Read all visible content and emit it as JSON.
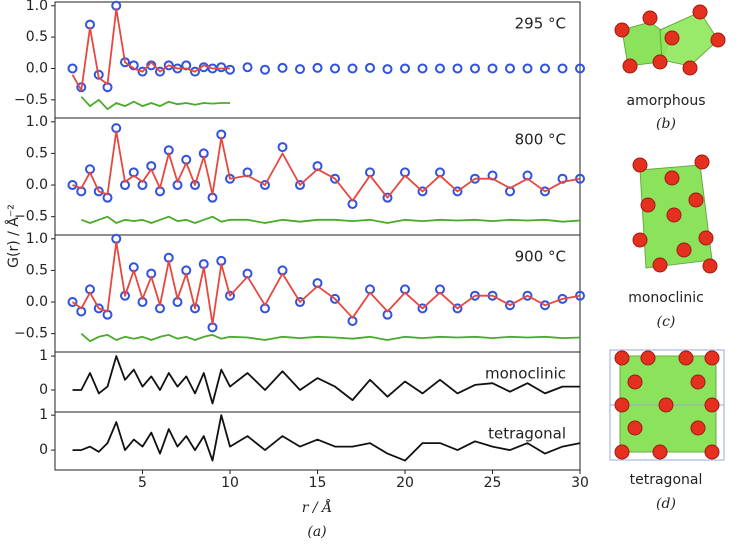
{
  "figure": {
    "ylabel": "G(r) / Å⁻²",
    "xlabel": "r / Å",
    "caption": "(a)"
  },
  "structures": [
    {
      "label": "amorphous",
      "caption": "(b)"
    },
    {
      "label": "monoclinic",
      "caption": "(c)"
    },
    {
      "label": "tetragonal",
      "caption": "(d)"
    }
  ],
  "chart_data": [
    {
      "type": "line",
      "annotation": "295 °C",
      "xlim": [
        0,
        30
      ],
      "ylim": [
        -0.79,
        1.06
      ],
      "yticks": [
        {
          "value": 1,
          "label": "1.0"
        },
        {
          "value": 0.5,
          "label": "0.5"
        },
        {
          "value": 0,
          "label": "0.0"
        },
        {
          "value": -0.5,
          "label": "−0.5"
        }
      ],
      "x": [
        1,
        1.5,
        2,
        2.5,
        3,
        3.5,
        4,
        4.5,
        5,
        5.5,
        6,
        6.5,
        7,
        7.5,
        8,
        8.5,
        9,
        9.5,
        10,
        11,
        12,
        13,
        14,
        15,
        16,
        17,
        18,
        19,
        20,
        21,
        22,
        23,
        24,
        25,
        26,
        27,
        28,
        29,
        30
      ],
      "series": [
        {
          "mode": "markers",
          "color": "#2f52e0",
          "values": [
            0.0,
            -0.3,
            0.7,
            -0.1,
            -0.3,
            1.0,
            0.1,
            0.05,
            -0.05,
            0.05,
            -0.05,
            0.05,
            0.0,
            0.05,
            -0.05,
            0.02,
            0.0,
            0.02,
            -0.02,
            0.02,
            -0.02,
            0.01,
            -0.01,
            0.01,
            0.0,
            0.0,
            0.01,
            -0.01,
            0.0,
            0.0,
            0.0,
            0.0,
            0.0,
            0.0,
            0.0,
            0.0,
            0.0,
            0.0,
            0.0
          ]
        },
        {
          "mode": "line",
          "color": "#e8473f",
          "values": [
            -0.1,
            -0.35,
            0.65,
            -0.15,
            -0.25,
            0.95,
            0.1,
            0.0,
            -0.05,
            0.1,
            -0.05,
            0.05,
            0.0,
            0.0,
            -0.05,
            0.05,
            0.0,
            0.0,
            0.0,
            null,
            null,
            null,
            null,
            null,
            null,
            null,
            null,
            null,
            null,
            null,
            null,
            null,
            null,
            null,
            null,
            null,
            null,
            null,
            null
          ]
        },
        {
          "mode": "line",
          "color": "#4aaa2a",
          "values": [
            null,
            -0.45,
            -0.6,
            -0.5,
            -0.65,
            -0.55,
            -0.6,
            -0.53,
            -0.6,
            -0.55,
            -0.6,
            -0.53,
            -0.57,
            -0.55,
            -0.58,
            -0.55,
            -0.56,
            -0.55,
            -0.55,
            null,
            null,
            null,
            null,
            null,
            null,
            null,
            null,
            null,
            null,
            null,
            null,
            null,
            null,
            null,
            null,
            null,
            null,
            null,
            null
          ]
        }
      ]
    },
    {
      "type": "line",
      "annotation": "800 °C",
      "xlim": [
        0,
        30
      ],
      "ylim": [
        -0.79,
        1.06
      ],
      "yticks": [
        {
          "value": 1,
          "label": "1.0"
        },
        {
          "value": 0.5,
          "label": "0.5"
        },
        {
          "value": 0,
          "label": "0.0"
        },
        {
          "value": -0.5,
          "label": "−0.5"
        }
      ],
      "x": [
        1,
        1.5,
        2,
        2.5,
        3,
        3.5,
        4,
        4.5,
        5,
        5.5,
        6,
        6.5,
        7,
        7.5,
        8,
        8.5,
        9,
        9.5,
        10,
        11,
        12,
        13,
        14,
        15,
        16,
        17,
        18,
        19,
        20,
        21,
        22,
        23,
        24,
        25,
        26,
        27,
        28,
        29,
        30
      ],
      "series": [
        {
          "mode": "markers",
          "color": "#2f52e0",
          "values": [
            0.0,
            -0.1,
            0.25,
            -0.1,
            -0.2,
            0.9,
            0.0,
            0.2,
            0.0,
            0.3,
            -0.1,
            0.55,
            0.0,
            0.4,
            0.0,
            0.5,
            -0.2,
            0.8,
            0.1,
            0.2,
            0.0,
            0.6,
            0.0,
            0.3,
            0.1,
            -0.3,
            0.2,
            -0.2,
            0.2,
            -0.1,
            0.2,
            -0.1,
            0.1,
            0.15,
            -0.1,
            0.15,
            -0.1,
            0.1,
            0.1
          ]
        },
        {
          "mode": "line",
          "color": "#e8473f",
          "values": [
            0.0,
            -0.05,
            0.2,
            -0.1,
            -0.15,
            0.85,
            0.05,
            0.15,
            0.05,
            0.25,
            -0.05,
            0.5,
            0.05,
            0.35,
            0.0,
            0.45,
            -0.15,
            0.75,
            0.1,
            0.15,
            0.0,
            0.5,
            0.0,
            0.25,
            0.1,
            -0.25,
            0.15,
            -0.2,
            0.15,
            -0.1,
            0.15,
            -0.1,
            0.1,
            0.1,
            -0.05,
            0.1,
            -0.1,
            0.05,
            0.1
          ]
        },
        {
          "mode": "line",
          "color": "#4aaa2a",
          "values": [
            null,
            -0.55,
            -0.6,
            -0.55,
            -0.5,
            -0.6,
            -0.55,
            -0.57,
            -0.55,
            -0.6,
            -0.55,
            -0.5,
            -0.57,
            -0.55,
            -0.6,
            -0.55,
            -0.5,
            -0.58,
            -0.55,
            -0.55,
            -0.6,
            -0.55,
            -0.58,
            -0.55,
            -0.55,
            -0.57,
            -0.55,
            -0.6,
            -0.55,
            -0.57,
            -0.55,
            -0.56,
            -0.55,
            -0.57,
            -0.55,
            -0.56,
            -0.55,
            -0.58,
            -0.56
          ]
        }
      ]
    },
    {
      "type": "line",
      "annotation": "900 °C",
      "xlim": [
        0,
        30
      ],
      "ylim": [
        -0.79,
        1.06
      ],
      "yticks": [
        {
          "value": 1,
          "label": "1.0"
        },
        {
          "value": 0.5,
          "label": "0.5"
        },
        {
          "value": 0,
          "label": "0.0"
        },
        {
          "value": -0.5,
          "label": "−0.5"
        }
      ],
      "x": [
        1,
        1.5,
        2,
        2.5,
        3,
        3.5,
        4,
        4.5,
        5,
        5.5,
        6,
        6.5,
        7,
        7.5,
        8,
        8.5,
        9,
        9.5,
        10,
        11,
        12,
        13,
        14,
        15,
        16,
        17,
        18,
        19,
        20,
        21,
        22,
        23,
        24,
        25,
        26,
        27,
        28,
        29,
        30
      ],
      "series": [
        {
          "mode": "markers",
          "color": "#2f52e0",
          "values": [
            0.0,
            -0.15,
            0.2,
            -0.1,
            -0.2,
            1.0,
            0.1,
            0.55,
            0.0,
            0.45,
            -0.1,
            0.7,
            0.0,
            0.5,
            -0.1,
            0.6,
            -0.4,
            0.65,
            0.1,
            0.45,
            -0.1,
            0.5,
            0.0,
            0.3,
            0.05,
            -0.3,
            0.2,
            -0.2,
            0.2,
            -0.1,
            0.2,
            -0.1,
            0.1,
            0.1,
            -0.05,
            0.1,
            -0.05,
            0.05,
            0.1
          ]
        },
        {
          "mode": "line",
          "color": "#e8473f",
          "values": [
            0.0,
            -0.1,
            0.15,
            -0.1,
            -0.15,
            0.95,
            0.1,
            0.5,
            0.05,
            0.4,
            -0.05,
            0.65,
            0.05,
            0.45,
            -0.1,
            0.55,
            -0.35,
            0.6,
            0.1,
            0.4,
            -0.05,
            0.45,
            0.0,
            0.25,
            0.05,
            -0.25,
            0.15,
            -0.15,
            0.15,
            -0.1,
            0.15,
            -0.1,
            0.1,
            0.1,
            -0.05,
            0.1,
            -0.05,
            0.05,
            0.1
          ]
        },
        {
          "mode": "line",
          "color": "#4aaa2a",
          "values": [
            null,
            -0.5,
            -0.62,
            -0.55,
            -0.52,
            -0.6,
            -0.55,
            -0.58,
            -0.55,
            -0.6,
            -0.55,
            -0.52,
            -0.58,
            -0.55,
            -0.6,
            -0.55,
            -0.52,
            -0.58,
            -0.55,
            -0.56,
            -0.6,
            -0.55,
            -0.57,
            -0.55,
            -0.56,
            -0.58,
            -0.55,
            -0.6,
            -0.55,
            -0.57,
            -0.55,
            -0.56,
            -0.55,
            -0.57,
            -0.55,
            -0.56,
            -0.55,
            -0.57,
            -0.56
          ]
        }
      ]
    },
    {
      "type": "line",
      "annotation": "monoclinic",
      "xlim": [
        0,
        30
      ],
      "ylim": [
        -0.65,
        1.12
      ],
      "yticks": [
        1,
        0
      ],
      "x": [
        1,
        1.5,
        2,
        2.5,
        3,
        3.5,
        4,
        4.5,
        5,
        5.5,
        6,
        6.5,
        7,
        7.5,
        8,
        8.5,
        9,
        9.5,
        10,
        11,
        12,
        13,
        14,
        15,
        16,
        17,
        18,
        19,
        20,
        21,
        22,
        23,
        24,
        25,
        26,
        27,
        28,
        29,
        30
      ],
      "series": [
        {
          "mode": "line",
          "color": "#111111",
          "values": [
            0.0,
            0.0,
            0.5,
            -0.1,
            0.1,
            1.0,
            0.3,
            0.6,
            0.1,
            0.4,
            0.0,
            0.5,
            0.1,
            0.4,
            -0.1,
            0.5,
            -0.4,
            0.6,
            0.1,
            0.5,
            0.0,
            0.55,
            0.0,
            0.35,
            0.1,
            -0.3,
            0.3,
            -0.2,
            0.25,
            -0.1,
            0.3,
            -0.1,
            0.15,
            0.2,
            -0.05,
            0.2,
            -0.1,
            0.1,
            0.1
          ]
        }
      ]
    },
    {
      "type": "line",
      "annotation": "tetragonal",
      "xlim": [
        0,
        30
      ],
      "ylim": [
        -0.57,
        1.09
      ],
      "yticks": [
        1,
        0
      ],
      "xticks": [
        5,
        10,
        15,
        20,
        25,
        30
      ],
      "x": [
        1,
        1.5,
        2,
        2.5,
        3,
        3.5,
        4,
        4.5,
        5,
        5.5,
        6,
        6.5,
        7,
        7.5,
        8,
        8.5,
        9,
        9.5,
        10,
        11,
        12,
        13,
        14,
        15,
        16,
        17,
        18,
        19,
        20,
        21,
        22,
        23,
        24,
        25,
        26,
        27,
        28,
        29,
        30
      ],
      "series": [
        {
          "mode": "line",
          "color": "#111111",
          "values": [
            0.0,
            0.0,
            0.1,
            -0.05,
            0.2,
            0.8,
            0.0,
            0.3,
            0.1,
            0.5,
            -0.1,
            0.6,
            0.1,
            0.4,
            0.0,
            0.4,
            -0.3,
            1.0,
            0.1,
            0.4,
            0.0,
            0.4,
            0.1,
            0.3,
            0.1,
            0.1,
            0.2,
            -0.1,
            -0.3,
            0.2,
            0.2,
            0.0,
            0.25,
            0.1,
            0.0,
            0.2,
            -0.1,
            0.1,
            0.2
          ]
        }
      ]
    }
  ]
}
